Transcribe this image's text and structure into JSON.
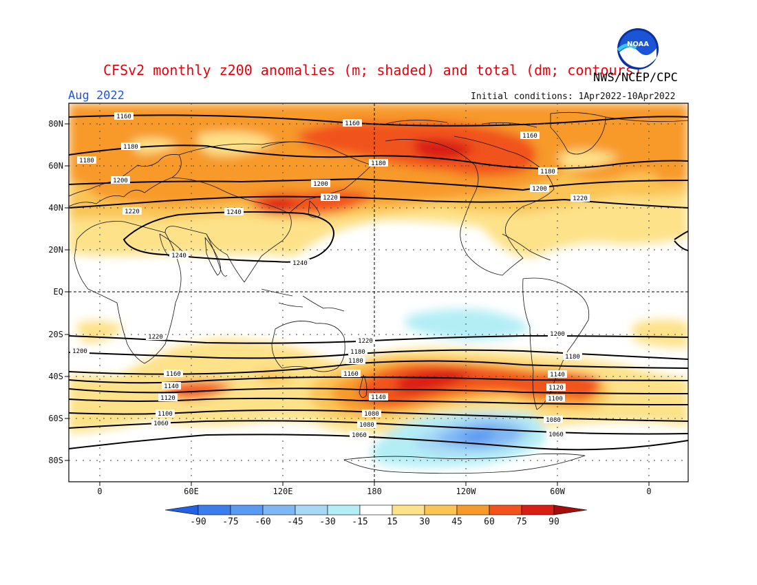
{
  "header": {
    "title": "CFSv2 monthly z200 anomalies (m; shaded) and total (dm; contours)",
    "org": "NWS/NCEP/CPC",
    "month": "Aug 2022",
    "initial_conditions": "Initial conditions: 1Apr2022-10Apr2022",
    "logo_text": "NOAA"
  },
  "map": {
    "lat_labels": [
      "80N",
      "60N",
      "40N",
      "20N",
      "EQ",
      "20S",
      "40S",
      "60S",
      "80S"
    ],
    "lon_labels": [
      "0",
      "60E",
      "120E",
      "180",
      "120W",
      "60W",
      "0"
    ]
  },
  "colorbar": {
    "ticks": [
      "-90",
      "-75",
      "-60",
      "-45",
      "-30",
      "-15",
      "15",
      "30",
      "45",
      "60",
      "75",
      "90"
    ],
    "colors": [
      "#2260e6",
      "#3b7ded",
      "#5a9af0",
      "#7fb6f4",
      "#a7d8f5",
      "#b4eef5",
      "#ffffff",
      "#fde289",
      "#fbc455",
      "#f79a2c",
      "#f1531a",
      "#d91f14",
      "#a40d0b"
    ]
  },
  "contour_labels": [
    "1160",
    "1160",
    "1160",
    "1180",
    "1180",
    "1180",
    "1180",
    "1200",
    "1200",
    "1200",
    "1220",
    "1220",
    "1220",
    "1240",
    "1240",
    "1240",
    "1220",
    "1220",
    "1200",
    "1200",
    "1180",
    "1180",
    "1180",
    "1160",
    "1160",
    "1140",
    "1140",
    "1140",
    "1120",
    "1120",
    "1100",
    "1100",
    "1080",
    "1080",
    "1080",
    "1060",
    "1060",
    "1060"
  ]
}
